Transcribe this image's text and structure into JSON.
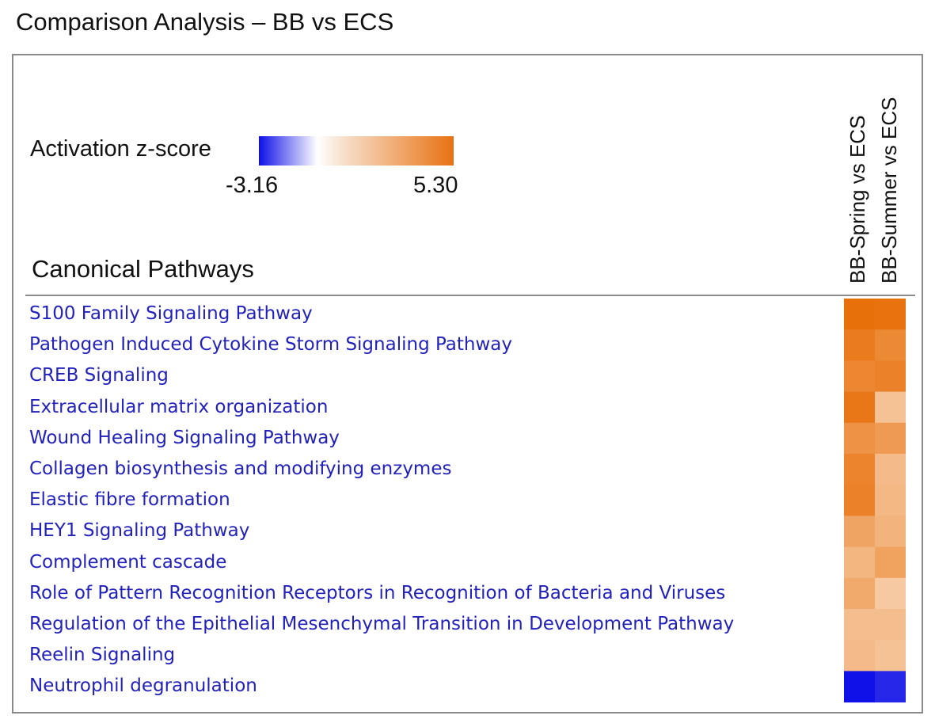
{
  "page_title": "Comparison Analysis – BB vs ECS",
  "legend": {
    "label": "Activation z-score",
    "min_label": "-3.16",
    "max_label": "5.30",
    "colors": [
      "#1010e8",
      "#ffffff",
      "#f6dcc8",
      "#e87212"
    ]
  },
  "section_title": "Canonical Pathways",
  "colors": {
    "pathway_text": "#2222bb",
    "frame": "#8a8a8a",
    "negative": "#1010e8",
    "positive": "#e8700a",
    "neutral": "#ffffff"
  },
  "chart_data": {
    "type": "heatmap",
    "title": "Comparison Analysis – BB vs ECS",
    "colorbar_label": "Activation z-score",
    "zlim": [
      -3.16,
      5.3
    ],
    "columns": [
      "BB-Spring vs ECS",
      "BB-Summer vs ECS"
    ],
    "rows": [
      "S100 Family Signaling Pathway",
      "Pathogen Induced Cytokine Storm Signaling Pathway",
      "CREB Signaling",
      "Extracellular matrix organization",
      "Wound Healing Signaling Pathway",
      "Collagen biosynthesis and modifying enzymes",
      "Elastic fibre formation",
      "HEY1 Signaling Pathway",
      "Complement cascade",
      "Role of Pattern Recognition Receptors in Recognition of Bacteria and Viruses",
      "Regulation of the Epithelial Mesenchymal Transition in Development Pathway",
      "Reelin Signaling",
      "Neutrophil degranulation"
    ],
    "values": [
      [
        5.3,
        5.2
      ],
      [
        4.8,
        4.3
      ],
      [
        4.4,
        4.6
      ],
      [
        5.0,
        2.0
      ],
      [
        3.9,
        3.6
      ],
      [
        4.5,
        2.3
      ],
      [
        4.6,
        2.4
      ],
      [
        3.2,
        2.6
      ],
      [
        2.5,
        3.3
      ],
      [
        3.0,
        1.7
      ],
      [
        2.2,
        2.2
      ],
      [
        2.3,
        2.0
      ],
      [
        -3.16,
        -2.8
      ]
    ]
  }
}
